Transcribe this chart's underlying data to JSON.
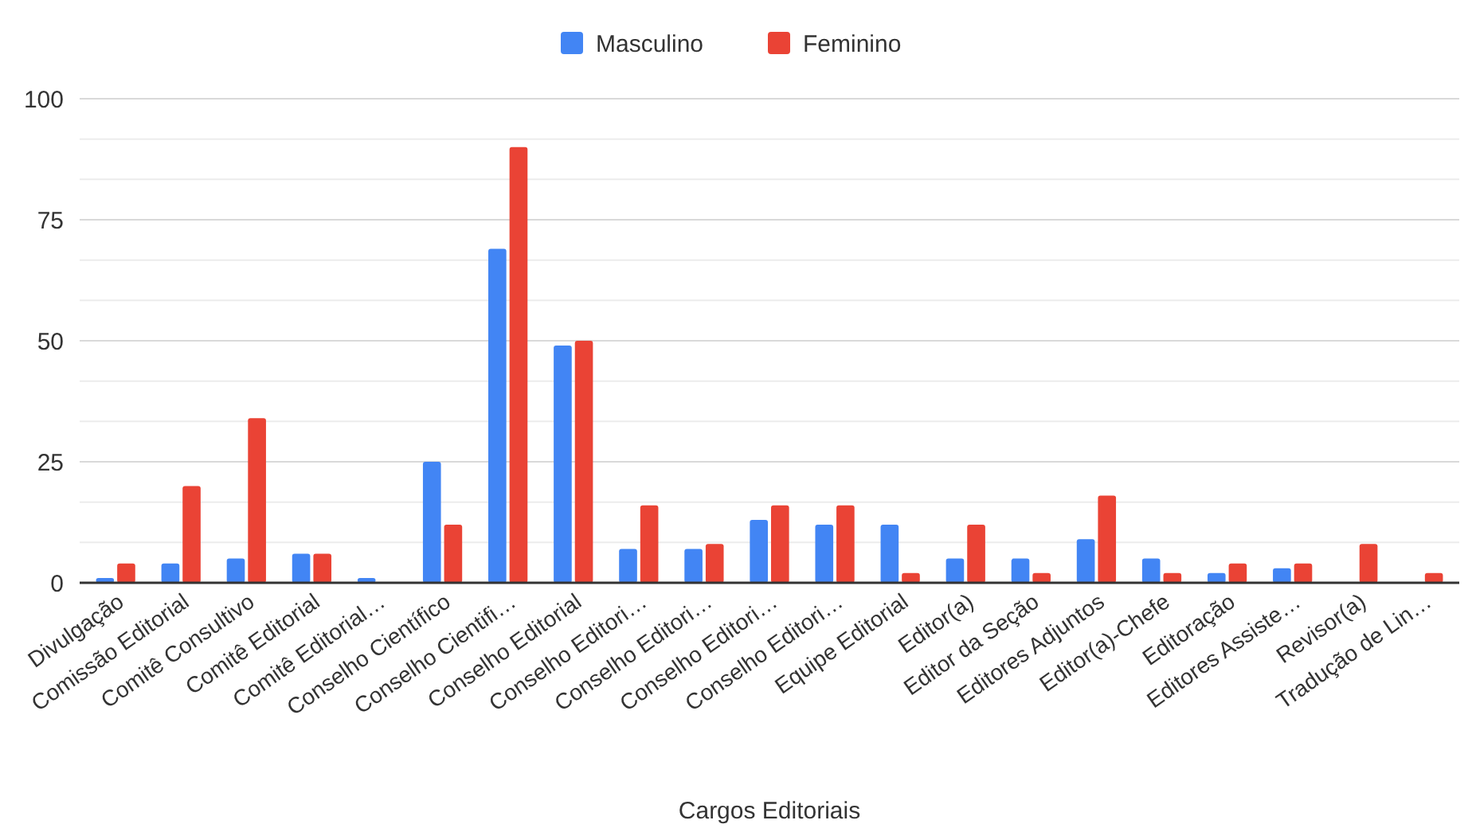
{
  "chart_data": {
    "type": "bar",
    "xlabel": "Cargos Editoriais",
    "categories": [
      "Divulgação",
      "Comissão Editorial",
      "Comitê Consultivo",
      "Comitê Editorial",
      "Comitê Editorial…",
      "Conselho Científico",
      "Conselho Cientifi…",
      "Conselho Editorial",
      "Conselho Editori…",
      "Conselho Editori…",
      "Conselho Editori…",
      "Conselho Editori…",
      "Equipe Editorial",
      "Editor(a)",
      "Editor da Seção",
      "Editores Adjuntos",
      "Editor(a)-Chefe",
      "Editoração",
      "Editores Assiste…",
      "Revisor(a)",
      "Tradução de Lin…"
    ],
    "series": [
      {
        "name": "Masculino",
        "color": "#4285f4",
        "values": [
          1,
          4,
          5,
          6,
          1,
          25,
          69,
          49,
          7,
          7,
          13,
          12,
          12,
          5,
          5,
          9,
          5,
          2,
          3,
          0,
          0
        ]
      },
      {
        "name": "Feminino",
        "color": "#ea4335",
        "values": [
          4,
          20,
          34,
          6,
          0,
          12,
          90,
          50,
          16,
          8,
          16,
          16,
          2,
          12,
          2,
          18,
          2,
          4,
          4,
          8,
          2
        ]
      }
    ],
    "ylim": [
      0,
      100
    ],
    "yticks": [
      0,
      {
        "value": 8.33,
        "label": null
      },
      {
        "value": 16.67,
        "label": null
      },
      25,
      {
        "value": 33.33,
        "label": null
      },
      {
        "value": 41.67,
        "label": null
      },
      50,
      {
        "value": 58.33,
        "label": null
      },
      {
        "value": 66.67,
        "label": null
      },
      75,
      {
        "value": 83.33,
        "label": null
      },
      {
        "value": 91.67,
        "label": null
      },
      100
    ],
    "grid": "y",
    "legend": "top"
  }
}
